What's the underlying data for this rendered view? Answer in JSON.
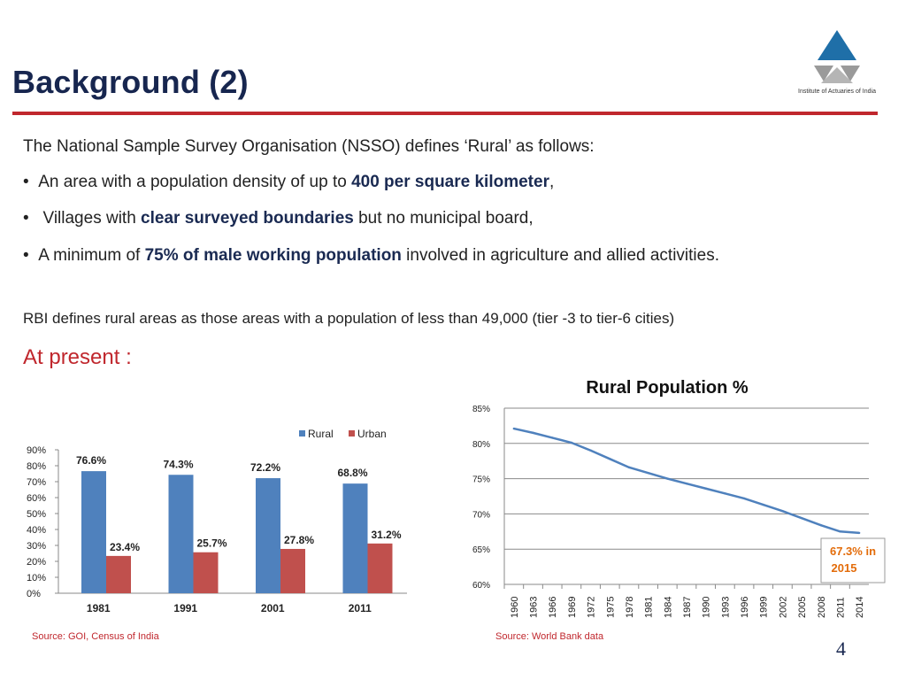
{
  "title": "Background (2)",
  "logo": {
    "caption": "Institute of Actuaries of India"
  },
  "intro": "The National Sample Survey Organisation (NSSO) defines ‘Rural’ as follows:",
  "bullets": [
    {
      "marker": "•",
      "pre": "An area with a population density of up to ",
      "bold": "400 per square kilometer",
      "post": ","
    },
    {
      "marker": "•",
      "pre": "Villages with ",
      "bold": "clear surveyed boundaries",
      "post": " but no municipal board,"
    },
    {
      "marker": "•",
      "pre": "A minimum of ",
      "bold": "75% of male working population",
      "post": " involved in agriculture and allied activities."
    }
  ],
  "rbi": "RBI defines rural areas as those areas with a population of less than 49,000 (tier -3 to tier-6 cities)",
  "at_present": "At present :",
  "sources": {
    "left": "Source: GOI, Census of India",
    "right": "Source: World Bank data"
  },
  "page_number": "4",
  "colors": {
    "title": "#17264f",
    "accent_red": "#c0272d",
    "rural": "#4f81bd",
    "urban": "#c0504d",
    "line": "#4f81bd"
  },
  "chart_data": [
    {
      "type": "bar",
      "title": "",
      "categories": [
        "1981",
        "1991",
        "2001",
        "2011"
      ],
      "series": [
        {
          "name": "Rural",
          "values": [
            76.6,
            74.3,
            72.2,
            68.8
          ],
          "labels": [
            "76.6%",
            "74.3%",
            "72.2%",
            "68.8%"
          ]
        },
        {
          "name": "Urban",
          "values": [
            23.4,
            25.7,
            27.8,
            31.2
          ],
          "labels": [
            "23.4%",
            "25.7%",
            "27.8%",
            "31.2%"
          ]
        }
      ],
      "ylim": [
        0,
        90
      ],
      "yticks": [
        "0%",
        "10%",
        "20%",
        "30%",
        "40%",
        "50%",
        "60%",
        "70%",
        "80%",
        "90%"
      ],
      "legend": "top-right",
      "grid": false
    },
    {
      "type": "line",
      "title": "Rural Population %",
      "x": [
        "1960",
        "1963",
        "1966",
        "1969",
        "1972",
        "1975",
        "1978",
        "1981",
        "1984",
        "1987",
        "1990",
        "1993",
        "1996",
        "1999",
        "2002",
        "2005",
        "2008",
        "2011",
        "2014"
      ],
      "series": [
        {
          "name": "Rural Population %",
          "values": [
            82.1,
            81.5,
            80.8,
            80.1,
            79.0,
            77.8,
            76.6,
            75.8,
            75.0,
            74.3,
            73.6,
            72.9,
            72.2,
            71.3,
            70.4,
            69.4,
            68.4,
            67.5,
            67.3
          ]
        }
      ],
      "ylim": [
        60,
        85
      ],
      "yticks": [
        "60%",
        "65%",
        "70%",
        "75%",
        "80%",
        "85%"
      ],
      "annotation": {
        "line1": "67.3% in",
        "line2": "2015"
      },
      "grid": true
    }
  ]
}
